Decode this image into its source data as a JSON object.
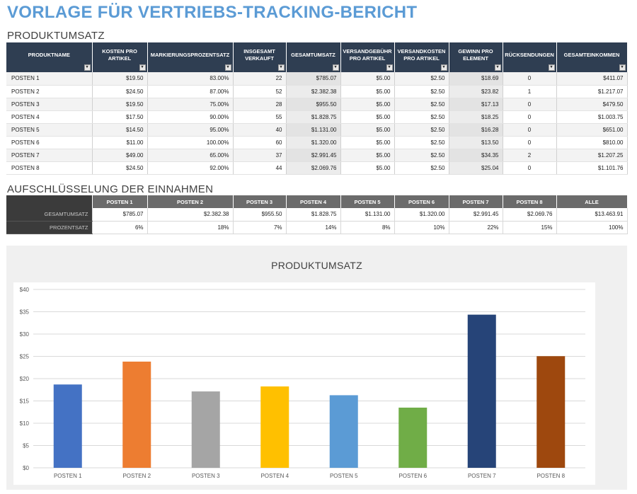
{
  "title": "VORLAGE FÜR VERTRIEBS-TRACKING-BERICHT",
  "section_sales": "PRODUKTUMSATZ",
  "section_breakdown": "AUFSCHLÜSSELUNG DER EINNAHMEN",
  "sales_table": {
    "columns": [
      "PRODUKTNAME",
      "KOSTEN PRO ARTIKEL",
      "MARKIERUNGSPROZENTSATZ",
      "INSGESAMT VERKAUFT",
      "GESAMTUMSATZ",
      "VERSANDGEBÜHR PRO ARTIKEL",
      "VERSANDKOSTEN PRO ARTIKEL",
      "GEWINN PRO ELEMENT",
      "RÜCKSENDUNGEN",
      "GESAMTEINKOMMEN"
    ],
    "dropdown_icon": "▾",
    "rows": [
      [
        "POSTEN 1",
        "$19.50",
        "83.00%",
        "22",
        "$785.07",
        "$5.00",
        "$2.50",
        "$18.69",
        "0",
        "$411.07"
      ],
      [
        "POSTEN 2",
        "$24.50",
        "87.00%",
        "52",
        "$2.382.38",
        "$5.00",
        "$2.50",
        "$23.82",
        "1",
        "$1.217.07"
      ],
      [
        "POSTEN 3",
        "$19.50",
        "75.00%",
        "28",
        "$955.50",
        "$5.00",
        "$2.50",
        "$17.13",
        "0",
        "$479.50"
      ],
      [
        "POSTEN 4",
        "$17.50",
        "90.00%",
        "55",
        "$1.828.75",
        "$5.00",
        "$2.50",
        "$18.25",
        "0",
        "$1.003.75"
      ],
      [
        "POSTEN 5",
        "$14.50",
        "95.00%",
        "40",
        "$1.131.00",
        "$5.00",
        "$2.50",
        "$16.28",
        "0",
        "$651.00"
      ],
      [
        "POSTEN 6",
        "$11.00",
        "100.00%",
        "60",
        "$1.320.00",
        "$5.00",
        "$2.50",
        "$13.50",
        "0",
        "$810.00"
      ],
      [
        "POSTEN 7",
        "$49.00",
        "65.00%",
        "37",
        "$2.991.45",
        "$5.00",
        "$2.50",
        "$34.35",
        "2",
        "$1.207.25"
      ],
      [
        "POSTEN 8",
        "$24.50",
        "92.00%",
        "44",
        "$2.069.76",
        "$5.00",
        "$2.50",
        "$25.04",
        "0",
        "$1.101.76"
      ]
    ]
  },
  "breakdown_table": {
    "columns": [
      "POSTEN 1",
      "POSTEN 2",
      "POSTEN 3",
      "POSTEN 4",
      "POSTEN 5",
      "POSTEN 6",
      "POSTEN 7",
      "POSTEN 8",
      "ALLE"
    ],
    "rows": [
      {
        "label": "GESAMTUMSATZ",
        "values": [
          "$785.07",
          "$2.382.38",
          "$955.50",
          "$1.828.75",
          "$1.131.00",
          "$1.320.00",
          "$2.991.45",
          "$2.069.76",
          "$13.463.91"
        ]
      },
      {
        "label": "PROZENTSATZ",
        "values": [
          "6%",
          "18%",
          "7%",
          "14%",
          "8%",
          "10%",
          "22%",
          "15%",
          "100%"
        ]
      }
    ]
  },
  "chart_data": {
    "type": "bar",
    "title": "PRODUKTUMSATZ",
    "categories": [
      "POSTEN 1",
      "POSTEN 2",
      "POSTEN 3",
      "POSTEN 4",
      "POSTEN 5",
      "POSTEN 6",
      "POSTEN 7",
      "POSTEN 8"
    ],
    "values": [
      18.69,
      23.82,
      17.13,
      18.25,
      16.28,
      13.5,
      34.35,
      25.04
    ],
    "colors": [
      "#4472c4",
      "#ed7d31",
      "#a5a5a5",
      "#ffc000",
      "#5b9bd5",
      "#70ad47",
      "#264478",
      "#9e480e"
    ],
    "ylim": [
      0,
      40
    ],
    "yticks": [
      0,
      5,
      10,
      15,
      20,
      25,
      30,
      35,
      40
    ],
    "ytick_labels": [
      "$0",
      "$5",
      "$10",
      "$15",
      "$20",
      "$25",
      "$30",
      "$35",
      "$40"
    ],
    "grid": true,
    "xlabel": "",
    "ylabel": ""
  }
}
